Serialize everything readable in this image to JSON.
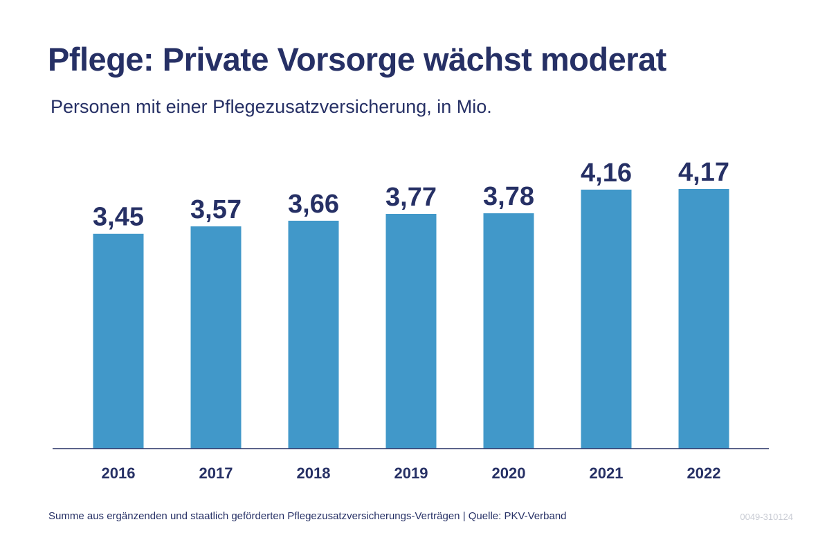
{
  "title": "Pflege: Private Vorsorge wächst moderat",
  "subtitle": "Personen mit einer Pflegezusatzversicherung, in Mio.",
  "footnote": "Summe aus ergänzenden und staatlich geförderten Pflegezusatzversicherungs-Verträgen  |  Quelle: PKV-Verband",
  "graphic_code": "0049-310124",
  "colors": {
    "bar": "#4198c9",
    "text": "#263065",
    "axis": "#263065"
  },
  "chart_data": {
    "type": "bar",
    "title": "Pflege: Private Vorsorge wächst moderat",
    "subtitle": "Personen mit einer Pflegezusatzversicherung, in Mio.",
    "categories": [
      "2016",
      "2017",
      "2018",
      "2019",
      "2020",
      "2021",
      "2022"
    ],
    "values": [
      3.45,
      3.57,
      3.66,
      3.77,
      3.78,
      4.16,
      4.17
    ],
    "value_labels": [
      "3,45",
      "3,57",
      "3,66",
      "3,77",
      "3,78",
      "4,16",
      "4,17"
    ],
    "xlabel": "",
    "ylabel": "",
    "ylim": [
      0,
      4.6
    ],
    "grid": false,
    "legend": "none"
  }
}
